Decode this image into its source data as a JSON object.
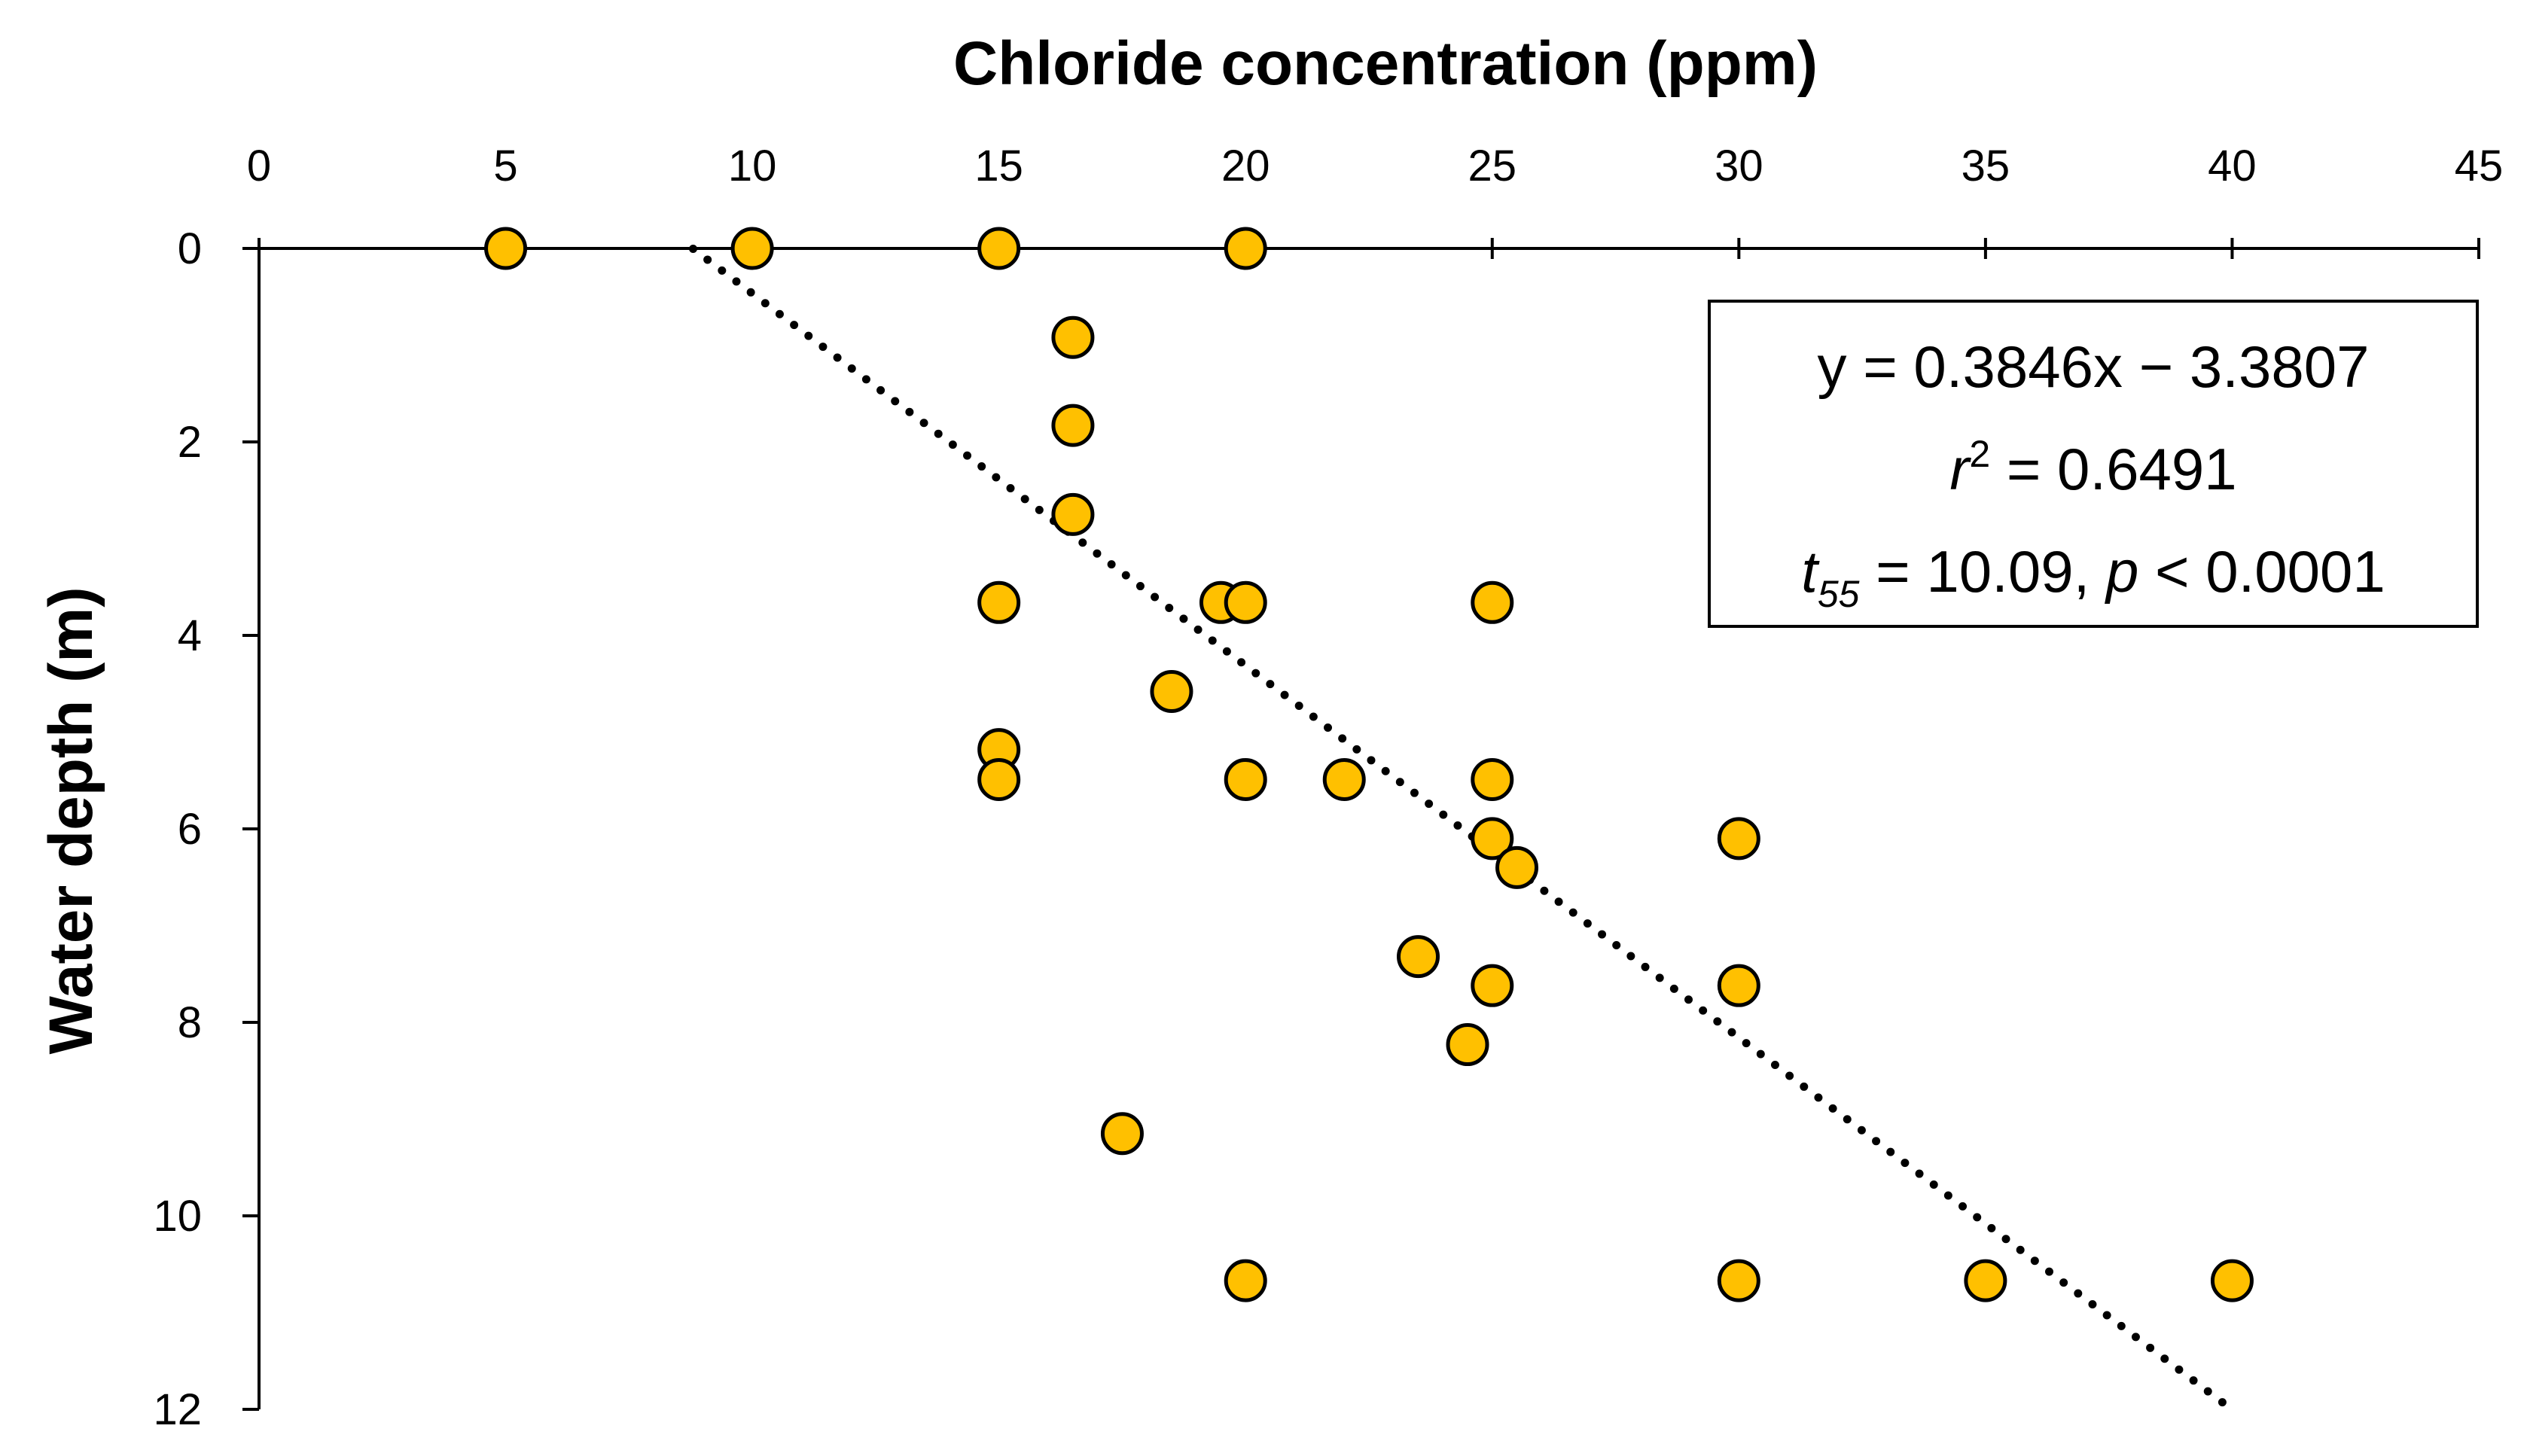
{
  "chart_data": {
    "type": "scatter",
    "title": "",
    "xlabel": "Chloride concentration (ppm)",
    "ylabel": "Water depth (m)",
    "xlim": [
      0,
      45
    ],
    "ylim": [
      0,
      12
    ],
    "x_axis_position": "top",
    "y_axis_inverted": true,
    "xticks": [
      0,
      5,
      10,
      15,
      20,
      25,
      30,
      35,
      40,
      45
    ],
    "yticks": [
      0,
      2,
      4,
      6,
      8,
      10,
      12
    ],
    "grid": false,
    "marker_color": "#FFC000",
    "marker_edge_color": "#000000",
    "points": [
      {
        "x": 5,
        "y": 0
      },
      {
        "x": 10,
        "y": 0
      },
      {
        "x": 15,
        "y": 0
      },
      {
        "x": 20,
        "y": 0
      },
      {
        "x": 16.5,
        "y": 0.92
      },
      {
        "x": 16.5,
        "y": 1.83
      },
      {
        "x": 16.5,
        "y": 2.75
      },
      {
        "x": 15,
        "y": 3.66
      },
      {
        "x": 19.5,
        "y": 3.66
      },
      {
        "x": 20,
        "y": 3.66
      },
      {
        "x": 25,
        "y": 3.66
      },
      {
        "x": 18.5,
        "y": 4.58
      },
      {
        "x": 15,
        "y": 5.18
      },
      {
        "x": 15,
        "y": 5.49
      },
      {
        "x": 20,
        "y": 5.49
      },
      {
        "x": 22,
        "y": 5.49
      },
      {
        "x": 25,
        "y": 5.49
      },
      {
        "x": 25,
        "y": 6.1
      },
      {
        "x": 30,
        "y": 6.1
      },
      {
        "x": 25.5,
        "y": 6.4
      },
      {
        "x": 23.5,
        "y": 7.32
      },
      {
        "x": 25,
        "y": 7.62
      },
      {
        "x": 30,
        "y": 7.62
      },
      {
        "x": 24.5,
        "y": 8.23
      },
      {
        "x": 17.5,
        "y": 9.15
      },
      {
        "x": 20,
        "y": 10.67
      },
      {
        "x": 30,
        "y": 10.67
      },
      {
        "x": 35,
        "y": 10.67
      },
      {
        "x": 40,
        "y": 10.67
      }
    ],
    "trendline": {
      "style": "dotted",
      "slope": 0.3846,
      "intercept": -3.3807,
      "x_range": [
        8.8,
        40
      ]
    },
    "annotation": {
      "equation": "y = 0.3846x − 3.3807",
      "r_symbol": "r",
      "r_exp": "2",
      "r_value": " = 0.6491",
      "t_symbol": "t",
      "t_sub": "55",
      "t_value": " = 10.09, ",
      "p_symbol": "p",
      "p_value": " < 0.0001",
      "position": "top-right"
    }
  }
}
